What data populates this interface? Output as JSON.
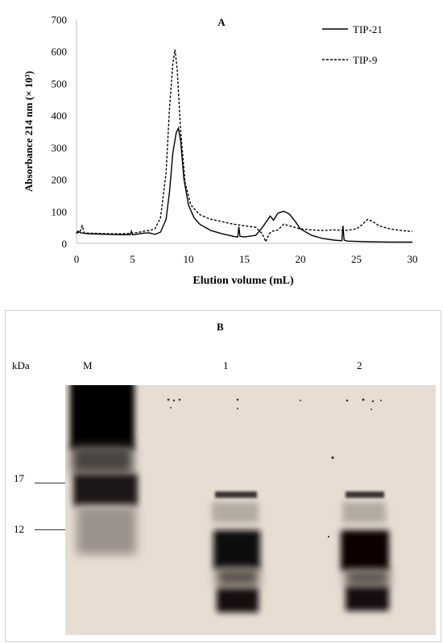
{
  "panel_a": {
    "chart_data": {
      "type": "line",
      "title": "A",
      "xlabel": "Elution volume (mL)",
      "ylabel": "Absorbance 214 nm (× 10³)",
      "xlim": [
        0,
        30
      ],
      "ylim": [
        0,
        700
      ],
      "x_ticks": [
        "0",
        "5",
        "10",
        "15",
        "20",
        "25",
        "30"
      ],
      "y_ticks": [
        "0",
        "100",
        "200",
        "300",
        "400",
        "500",
        "600",
        "700"
      ],
      "legend_position": "top-right",
      "series": [
        {
          "name": "TIP-21",
          "style": "solid",
          "color": "#000000",
          "x": [
            0,
            0.1,
            0.4,
            1,
            2,
            3,
            4,
            4.8,
            4.9,
            5.0,
            5.1,
            6,
            6.5,
            7,
            7.5,
            8,
            8.3,
            8.6,
            8.9,
            9.1,
            9.3,
            9.6,
            10,
            10.5,
            11,
            12,
            13,
            14,
            14.4,
            14.5,
            14.6,
            15,
            16,
            16.5,
            17,
            17.3,
            17.6,
            18,
            18.5,
            19,
            19.5,
            20,
            21,
            22,
            23,
            23.7,
            23.8,
            23.9,
            24.2,
            25,
            26,
            28,
            30
          ],
          "y": [
            30,
            38,
            33,
            30,
            29,
            28,
            27,
            27,
            38,
            27,
            27,
            32,
            33,
            28,
            35,
            75,
            160,
            280,
            345,
            360,
            320,
            200,
            120,
            80,
            60,
            40,
            30,
            22,
            20,
            52,
            22,
            20,
            25,
            45,
            70,
            85,
            72,
            95,
            100,
            92,
            70,
            45,
            25,
            15,
            10,
            8,
            55,
            10,
            7,
            6,
            5,
            4,
            4
          ]
        },
        {
          "name": "TIP-9",
          "style": "dashed",
          "color": "#000000",
          "x": [
            0,
            0.3,
            0.5,
            0.7,
            1,
            2,
            3,
            4,
            5,
            5.5,
            6,
            6.5,
            7,
            7.5,
            8,
            8.3,
            8.6,
            8.8,
            9.0,
            9.3,
            9.7,
            10.2,
            11,
            12,
            13,
            14,
            15,
            16,
            16.6,
            16.9,
            17.2,
            17.5,
            18,
            18.5,
            19,
            20,
            21,
            22,
            23,
            24,
            25,
            25.5,
            26,
            26.5,
            27,
            28,
            29,
            30
          ],
          "y": [
            33,
            35,
            55,
            32,
            32,
            31,
            30,
            30,
            32,
            34,
            38,
            40,
            45,
            80,
            220,
            420,
            560,
            605,
            540,
            350,
            190,
            120,
            90,
            75,
            68,
            60,
            55,
            50,
            30,
            5,
            30,
            38,
            42,
            60,
            55,
            45,
            42,
            40,
            42,
            40,
            45,
            58,
            75,
            68,
            55,
            45,
            40,
            37
          ]
        }
      ]
    }
  },
  "panel_b": {
    "title": "B",
    "unit_label": "kDa",
    "lanes": [
      "M",
      "1",
      "2"
    ],
    "markers": [
      {
        "label": "17",
        "kda": 17
      },
      {
        "label": "12",
        "kda": 12
      }
    ]
  }
}
